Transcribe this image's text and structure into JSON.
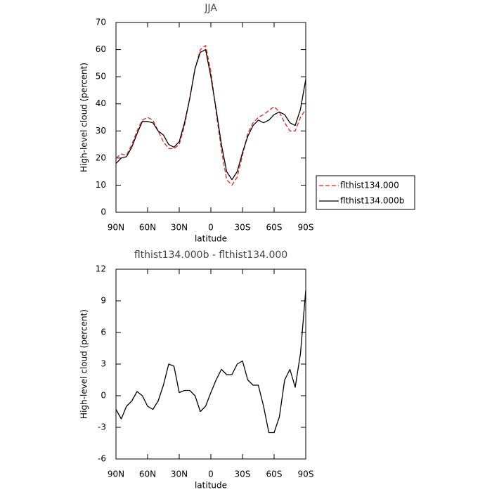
{
  "chart_data": [
    {
      "type": "line",
      "title": "JJA",
      "xlabel": "latitude",
      "ylabel": "High-level cloud (percent)",
      "x": [
        90,
        85,
        80,
        75,
        70,
        65,
        60,
        55,
        50,
        45,
        40,
        35,
        30,
        25,
        20,
        15,
        10,
        5,
        0,
        -5,
        -10,
        -15,
        -20,
        -25,
        -30,
        -35,
        -40,
        -45,
        -50,
        -55,
        -60,
        -65,
        -70,
        -75,
        -80,
        -85,
        -90
      ],
      "series": [
        {
          "name": "flthist134.000",
          "color": "#e8231e",
          "line_style": "dashed",
          "values": [
            20,
            21.5,
            21,
            25,
            30,
            34,
            35,
            34,
            30,
            26,
            23.5,
            23.5,
            25,
            32,
            42,
            53,
            60,
            61.5,
            52,
            37,
            23,
            12,
            10,
            13,
            21,
            29,
            33,
            35,
            36,
            37.5,
            39,
            37,
            33,
            30,
            30,
            35,
            38
          ]
        },
        {
          "name": "flthist134.000b",
          "color": "#000000",
          "line_style": "solid",
          "values": [
            18,
            20,
            20.5,
            24,
            29,
            33.5,
            33.5,
            33,
            30,
            28.5,
            25,
            24,
            26,
            33,
            42,
            53,
            59,
            60,
            50,
            38,
            25,
            15,
            12,
            15,
            22,
            28,
            32,
            34,
            33,
            34,
            36,
            37,
            36,
            33,
            32,
            38,
            49
          ]
        }
      ],
      "xlim": [
        90,
        -90
      ],
      "xticks": [
        {
          "value": 90,
          "label": "90N"
        },
        {
          "value": 60,
          "label": "60N"
        },
        {
          "value": 30,
          "label": "30N"
        },
        0,
        {
          "value": -30,
          "label": "30S"
        },
        {
          "value": -60,
          "label": "60S"
        },
        {
          "value": -90,
          "label": "90S"
        }
      ],
      "ylim": [
        0,
        70
      ],
      "yticks": [
        0,
        10,
        20,
        30,
        40,
        50,
        60,
        70
      ],
      "legend": "right"
    },
    {
      "type": "line",
      "title": "flthist134.000b - flthist134.000",
      "xlabel": "latitude",
      "ylabel": "High-level cloud (percent)",
      "x": [
        90,
        85,
        80,
        75,
        70,
        65,
        60,
        55,
        50,
        45,
        40,
        35,
        30,
        25,
        20,
        15,
        10,
        5,
        0,
        -5,
        -10,
        -15,
        -20,
        -25,
        -30,
        -35,
        -40,
        -45,
        -50,
        -55,
        -60,
        -65,
        -70,
        -75,
        -80,
        -85,
        -90
      ],
      "series": [
        {
          "color": "#000000",
          "line_style": "solid",
          "values": [
            -1.3,
            -2.2,
            -1,
            -0.5,
            0.4,
            0,
            -1,
            -1.3,
            -0.5,
            1,
            3,
            2.8,
            0.3,
            0.5,
            0.5,
            0,
            -1.5,
            -1,
            0.3,
            1.5,
            2.5,
            2,
            2,
            3,
            3.3,
            1.5,
            1,
            1,
            -1,
            -3.5,
            -3.5,
            -2,
            1.5,
            2.5,
            0.8,
            4,
            10
          ]
        }
      ],
      "xlim": [
        90,
        -90
      ],
      "xticks": [
        {
          "value": 90,
          "label": "90N"
        },
        {
          "value": 60,
          "label": "60N"
        },
        {
          "value": 30,
          "label": "30N"
        },
        0,
        {
          "value": -30,
          "label": "30S"
        },
        {
          "value": -60,
          "label": "60S"
        },
        {
          "value": -90,
          "label": "90S"
        }
      ],
      "ylim": [
        -6,
        12
      ],
      "yticks": [
        -6,
        -3,
        0,
        3,
        6,
        9,
        12
      ]
    }
  ]
}
